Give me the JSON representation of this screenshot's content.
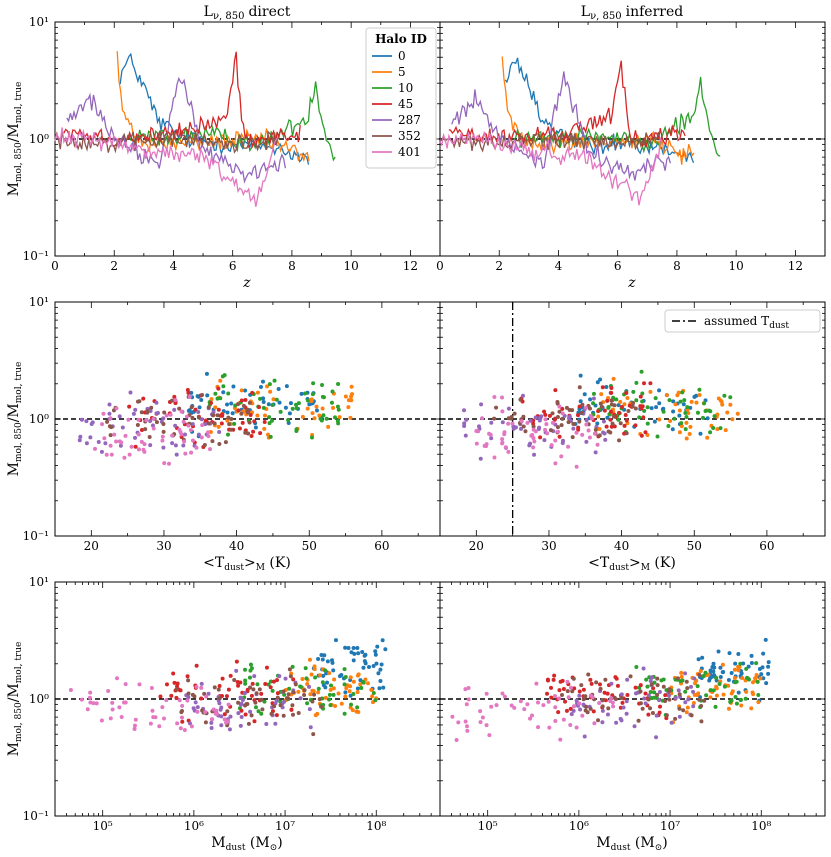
{
  "chart_data": {
    "type": "multi-panel",
    "colors": {
      "halo_0": "#1f77b4",
      "halo_5": "#ff7f0e",
      "halo_10": "#2ca02c",
      "halo_45": "#d62728",
      "halo_287": "#9467bd",
      "halo_352": "#8c564b",
      "halo_401": "#e377c2"
    },
    "titles": [
      "Lν, 850 direct",
      "Lν, 850 inferred"
    ],
    "title_sub": "ν, 850",
    "title_left_word": "direct",
    "title_right_word": "inferred",
    "ylabel": "Mmol, 850/Mmol, true",
    "ylabel_main": "M",
    "ylabel_sub1": "mol, 850",
    "ylabel_mid": "/M",
    "ylabel_sub2": "mol, true",
    "ylim": [
      0.1,
      10
    ],
    "yscale": "log",
    "yticks": [
      "10⁻¹",
      "10⁰",
      "10¹"
    ],
    "reference_line_y": 1.0,
    "legend": {
      "title": "Halo ID",
      "entries": [
        "0",
        "5",
        "10",
        "45",
        "287",
        "352",
        "401"
      ],
      "location": "top-center of upper-left panel"
    },
    "row1": {
      "type": "line",
      "xlabel": "z",
      "xlim": [
        0,
        13
      ],
      "xticks": [
        "0",
        "2",
        "4",
        "6",
        "8",
        "10",
        "12"
      ],
      "series": [
        {
          "name": "0",
          "z_range": [
            2.2,
            8.6
          ],
          "anchors": [
            [
              2.2,
              3.5
            ],
            [
              2.5,
              4.8
            ],
            [
              2.7,
              4.0
            ],
            [
              3.0,
              2.8
            ],
            [
              3.5,
              1.4
            ],
            [
              4.5,
              1.0
            ],
            [
              6.0,
              0.9
            ],
            [
              7.5,
              0.85
            ],
            [
              8.6,
              0.65
            ]
          ]
        },
        {
          "name": "5",
          "z_range": [
            2.1,
            8.6
          ],
          "anchors": [
            [
              2.1,
              5.0
            ],
            [
              2.3,
              1.5
            ],
            [
              3.0,
              0.9
            ],
            [
              5.0,
              0.95
            ],
            [
              7.0,
              1.0
            ],
            [
              8.6,
              0.7
            ]
          ]
        },
        {
          "name": "10",
          "z_range": [
            2.5,
            9.5
          ],
          "anchors": [
            [
              2.5,
              1.0
            ],
            [
              5.0,
              1.1
            ],
            [
              7.0,
              0.9
            ],
            [
              8.5,
              1.5
            ],
            [
              8.8,
              3.0
            ],
            [
              9.0,
              1.5
            ],
            [
              9.5,
              0.6
            ]
          ]
        },
        {
          "name": "45",
          "z_range": [
            0.3,
            8.3
          ],
          "anchors": [
            [
              0.3,
              1.2
            ],
            [
              2.0,
              1.0
            ],
            [
              4.0,
              1.1
            ],
            [
              5.8,
              1.5
            ],
            [
              6.1,
              5.0
            ],
            [
              6.4,
              1.0
            ],
            [
              8.3,
              1.1
            ]
          ]
        },
        {
          "name": "287",
          "z_range": [
            0.4,
            7.8
          ],
          "anchors": [
            [
              0.4,
              1.4
            ],
            [
              1.2,
              2.2
            ],
            [
              2.0,
              1.0
            ],
            [
              3.5,
              0.6
            ],
            [
              4.2,
              3.5
            ],
            [
              5.0,
              0.8
            ],
            [
              6.5,
              0.5
            ],
            [
              7.8,
              0.7
            ]
          ]
        },
        {
          "name": "352",
          "z_range": [
            0.0,
            7.5
          ],
          "anchors": [
            [
              0.0,
              1.0
            ],
            [
              2.0,
              0.9
            ],
            [
              4.0,
              1.0
            ],
            [
              6.0,
              0.9
            ],
            [
              7.5,
              1.0
            ]
          ]
        },
        {
          "name": "401",
          "z_range": [
            0.0,
            7.5
          ],
          "anchors": [
            [
              0.0,
              1.0
            ],
            [
              1.5,
              1.0
            ],
            [
              3.0,
              0.8
            ],
            [
              5.0,
              0.7
            ],
            [
              6.8,
              0.3
            ],
            [
              7.5,
              1.0
            ]
          ]
        }
      ]
    },
    "row2": {
      "type": "scatter",
      "xlabel": "<Tdust>M (K)",
      "xlabel_main": "<T",
      "xlabel_sub": "dust",
      "xlabel_sub2": "M",
      "xlabel_rest": " (K)",
      "xlim": [
        15,
        68
      ],
      "xticks": [
        "20",
        "30",
        "40",
        "50",
        "60"
      ],
      "assumed_tdust": 25,
      "assumed_label": "assumed T",
      "assumed_label_sub": "dust",
      "groups": [
        {
          "name": "0",
          "x_range": [
            33,
            52
          ],
          "y_center": 1.3
        },
        {
          "name": "5",
          "x_range": [
            36,
            56
          ],
          "y_center": 1.2
        },
        {
          "name": "10",
          "x_range": [
            36,
            55
          ],
          "y_center": 1.3
        },
        {
          "name": "45",
          "x_range": [
            25,
            44
          ],
          "y_center": 1.1
        },
        {
          "name": "287",
          "x_range": [
            18,
            38
          ],
          "y_center": 0.9
        },
        {
          "name": "352",
          "x_range": [
            22,
            42
          ],
          "y_center": 1.0
        },
        {
          "name": "401",
          "x_range": [
            20,
            37
          ],
          "y_center": 0.75
        }
      ]
    },
    "row3": {
      "type": "scatter",
      "xlabel": "Mdust (M⊙)",
      "xlabel_main": "M",
      "xlabel_sub": "dust",
      "xlabel_rest": " (M",
      "xlabel_sun": "⊙",
      "xlabel_close": ")",
      "xscale": "log",
      "xlim": [
        30000,
        500000000
      ],
      "xticks": [
        "10⁵",
        "10⁶",
        "10⁷",
        "10⁸"
      ],
      "groups": [
        {
          "name": "0",
          "logx_range": [
            7.3,
            8.1
          ],
          "y_center": 1.8
        },
        {
          "name": "5",
          "logx_range": [
            7.0,
            8.0
          ],
          "y_center": 1.2
        },
        {
          "name": "10",
          "logx_range": [
            6.5,
            8.0
          ],
          "y_center": 1.2
        },
        {
          "name": "45",
          "logx_range": [
            5.6,
            7.1
          ],
          "y_center": 1.1
        },
        {
          "name": "287",
          "logx_range": [
            5.9,
            7.3
          ],
          "y_center": 0.9
        },
        {
          "name": "352",
          "logx_range": [
            5.8,
            7.4
          ],
          "y_center": 1.0
        },
        {
          "name": "401",
          "logx_range": [
            4.6,
            6.4
          ],
          "y_center": 0.8
        }
      ]
    }
  }
}
